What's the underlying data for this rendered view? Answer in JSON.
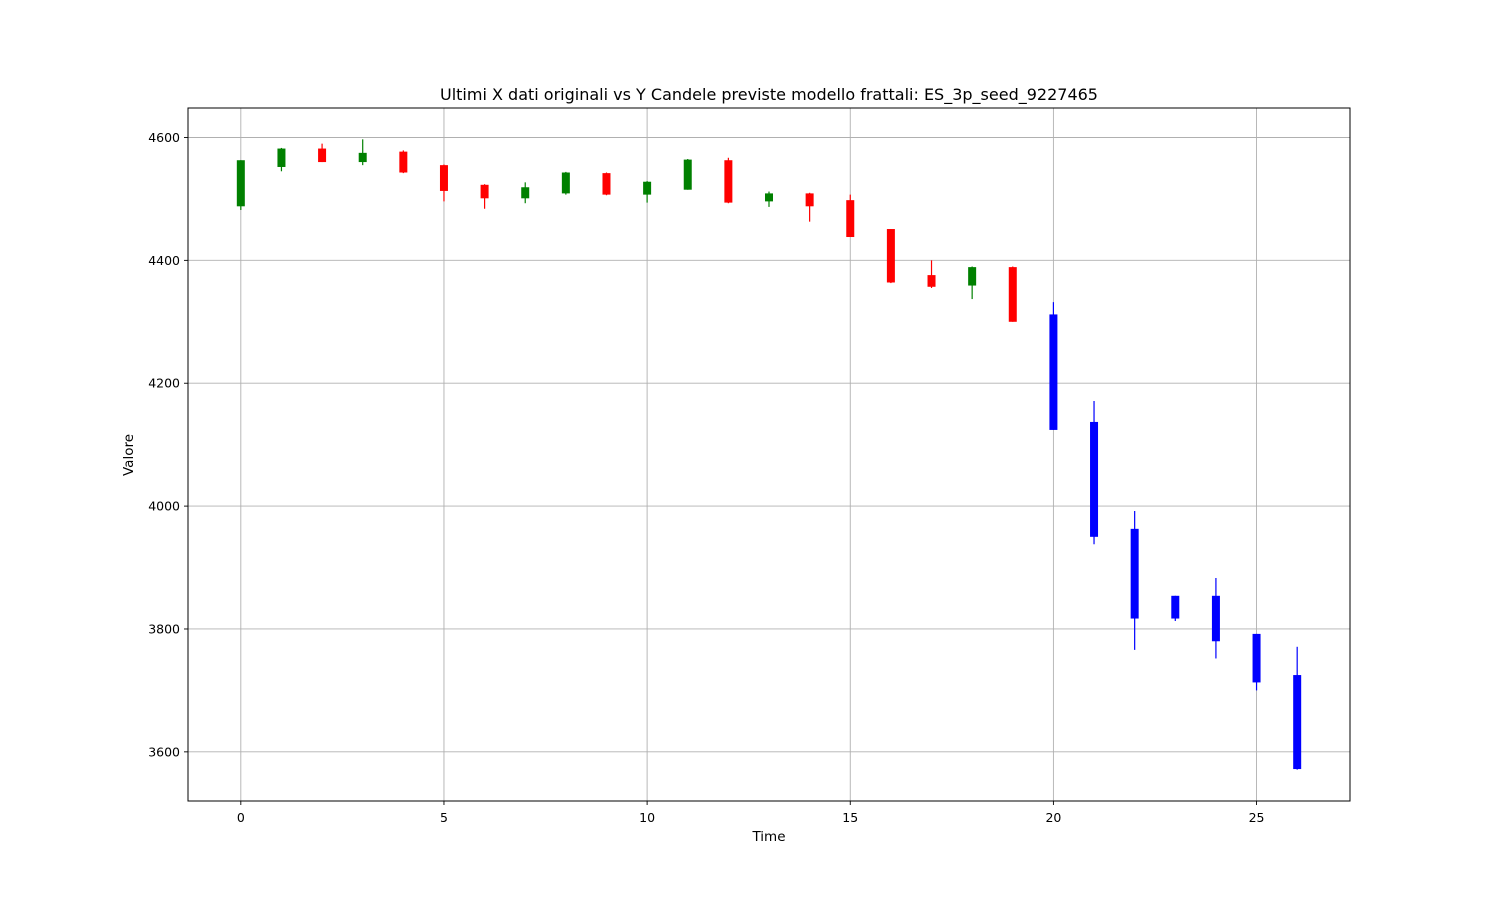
{
  "chart_data": {
    "type": "candlestick",
    "title": "Ultimi X dati originali vs Y Candele previste modello frattali: ES_3p_seed_9227465",
    "xlabel": "Time",
    "ylabel": "Valore",
    "xlim": [
      -1.3,
      27.3
    ],
    "ylim": [
      3520,
      4648
    ],
    "xticks": [
      0,
      5,
      10,
      15,
      20,
      25
    ],
    "yticks": [
      3600,
      3800,
      4000,
      4200,
      4400,
      4600
    ],
    "grid": true,
    "colors": {
      "up": "#008000",
      "down": "#ff0000",
      "predicted": "#0000ff"
    },
    "candles": [
      {
        "t": 0,
        "open": 4488,
        "high": 4563,
        "low": 4482,
        "close": 4563,
        "kind": "up"
      },
      {
        "t": 1,
        "open": 4552,
        "high": 4583,
        "low": 4545,
        "close": 4582,
        "kind": "up"
      },
      {
        "t": 2,
        "open": 4582,
        "high": 4590,
        "low": 4560,
        "close": 4560,
        "kind": "down"
      },
      {
        "t": 3,
        "open": 4560,
        "high": 4597,
        "low": 4555,
        "close": 4575,
        "kind": "up"
      },
      {
        "t": 4,
        "open": 4577,
        "high": 4579,
        "low": 4542,
        "close": 4543,
        "kind": "down"
      },
      {
        "t": 5,
        "open": 4555,
        "high": 4556,
        "low": 4496,
        "close": 4513,
        "kind": "down"
      },
      {
        "t": 6,
        "open": 4523,
        "high": 4524,
        "low": 4484,
        "close": 4501,
        "kind": "down"
      },
      {
        "t": 7,
        "open": 4501,
        "high": 4527,
        "low": 4493,
        "close": 4519,
        "kind": "up"
      },
      {
        "t": 8,
        "open": 4509,
        "high": 4544,
        "low": 4507,
        "close": 4543,
        "kind": "up"
      },
      {
        "t": 9,
        "open": 4542,
        "high": 4543,
        "low": 4506,
        "close": 4507,
        "kind": "down"
      },
      {
        "t": 10,
        "open": 4507,
        "high": 4529,
        "low": 4494,
        "close": 4528,
        "kind": "up"
      },
      {
        "t": 11,
        "open": 4515,
        "high": 4565,
        "low": 4515,
        "close": 4564,
        "kind": "up"
      },
      {
        "t": 12,
        "open": 4563,
        "high": 4567,
        "low": 4493,
        "close": 4494,
        "kind": "down"
      },
      {
        "t": 13,
        "open": 4496,
        "high": 4512,
        "low": 4487,
        "close": 4509,
        "kind": "up"
      },
      {
        "t": 14,
        "open": 4509,
        "high": 4510,
        "low": 4463,
        "close": 4488,
        "kind": "down"
      },
      {
        "t": 15,
        "open": 4498,
        "high": 4507,
        "low": 4438,
        "close": 4438,
        "kind": "down"
      },
      {
        "t": 16,
        "open": 4451,
        "high": 4451,
        "low": 4363,
        "close": 4364,
        "kind": "down"
      },
      {
        "t": 17,
        "open": 4376,
        "high": 4400,
        "low": 4355,
        "close": 4357,
        "kind": "down"
      },
      {
        "t": 18,
        "open": 4359,
        "high": 4390,
        "low": 4337,
        "close": 4389,
        "kind": "up"
      },
      {
        "t": 19,
        "open": 4389,
        "high": 4390,
        "low": 4300,
        "close": 4300,
        "kind": "down"
      },
      {
        "t": 20,
        "open": 4312,
        "high": 4332,
        "low": 4124,
        "close": 4124,
        "kind": "predicted"
      },
      {
        "t": 21,
        "open": 4137,
        "high": 4171,
        "low": 3938,
        "close": 3950,
        "kind": "predicted"
      },
      {
        "t": 22,
        "open": 3963,
        "high": 3992,
        "low": 3766,
        "close": 3817,
        "kind": "predicted"
      },
      {
        "t": 23,
        "open": 3854,
        "high": 3854,
        "low": 3813,
        "close": 3817,
        "kind": "predicted"
      },
      {
        "t": 24,
        "open": 3854,
        "high": 3883,
        "low": 3752,
        "close": 3780,
        "kind": "predicted"
      },
      {
        "t": 25,
        "open": 3792,
        "high": 3792,
        "low": 3700,
        "close": 3713,
        "kind": "predicted"
      },
      {
        "t": 26,
        "open": 3725,
        "high": 3771,
        "low": 3571,
        "close": 3572,
        "kind": "predicted"
      }
    ]
  }
}
